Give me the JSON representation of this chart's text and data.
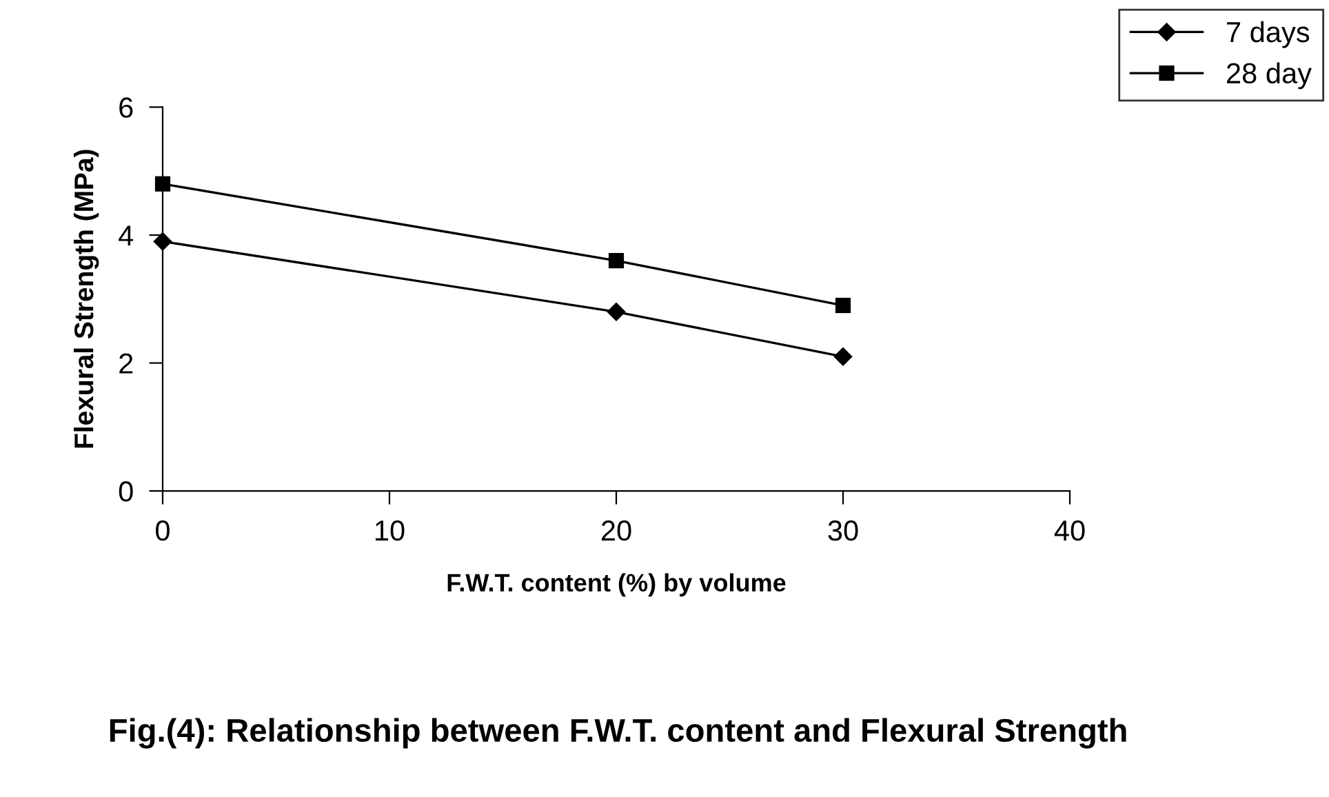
{
  "chart_data": {
    "type": "line",
    "title": "Fig.(4): Relationship between F.W.T. content and Flexural Strength",
    "xlabel": "F.W.T. content (%) by volume",
    "ylabel": "Flexural Strength (MPa)",
    "x": [
      0,
      20,
      30
    ],
    "series": [
      {
        "name": "7 days",
        "color": "#000000",
        "values": [
          3.9,
          2.8,
          2.1
        ],
        "marker": "diamond"
      },
      {
        "name": "28 day",
        "color": "#000000",
        "values": [
          4.8,
          3.6,
          2.9
        ],
        "marker": "square"
      }
    ],
    "xlim": [
      0,
      40
    ],
    "xticks": [
      0,
      10,
      20,
      30,
      40
    ],
    "ylim": [
      0,
      6
    ],
    "yticks": [
      0,
      2,
      4,
      6
    ],
    "grid": false,
    "legend": "top right",
    "line_style": "solid"
  }
}
